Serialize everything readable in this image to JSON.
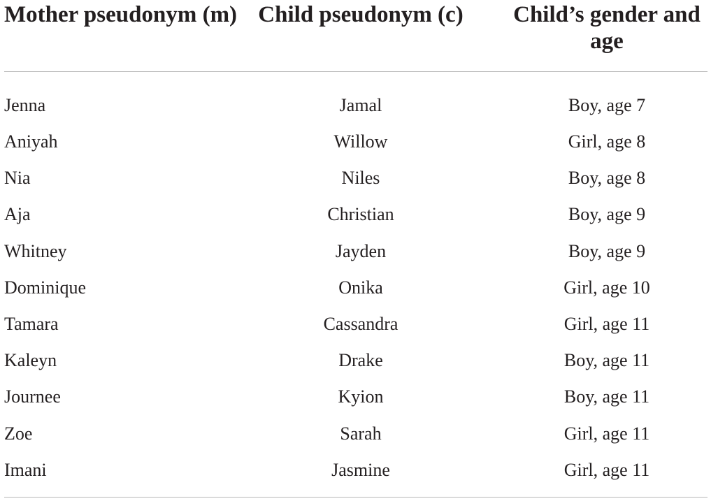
{
  "table": {
    "headers": [
      "Mother pseudonym (m)",
      "Child pseudonym (c)",
      "Child’s gender and age"
    ],
    "rows": [
      {
        "mother": "Jenna",
        "child": "Jamal",
        "gender_age": "Boy, age 7"
      },
      {
        "mother": "Aniyah",
        "child": "Willow",
        "gender_age": "Girl, age 8"
      },
      {
        "mother": "Nia",
        "child": "Niles",
        "gender_age": "Boy, age 8"
      },
      {
        "mother": "Aja",
        "child": "Christian",
        "gender_age": "Boy, age 9"
      },
      {
        "mother": "Whitney",
        "child": "Jayden",
        "gender_age": "Boy, age 9"
      },
      {
        "mother": "Dominique",
        "child": "Onika",
        "gender_age": "Girl, age 10"
      },
      {
        "mother": "Tamara",
        "child": "Cassandra",
        "gender_age": "Girl, age 11"
      },
      {
        "mother": "Kaleyn",
        "child": "Drake",
        "gender_age": "Boy, age 11"
      },
      {
        "mother": "Journee",
        "child": "Kyion",
        "gender_age": "Boy, age 11"
      },
      {
        "mother": "Zoe",
        "child": "Sarah",
        "gender_age": "Girl, age 11"
      },
      {
        "mother": "Imani",
        "child": "Jasmine",
        "gender_age": "Girl, age 11"
      }
    ]
  }
}
